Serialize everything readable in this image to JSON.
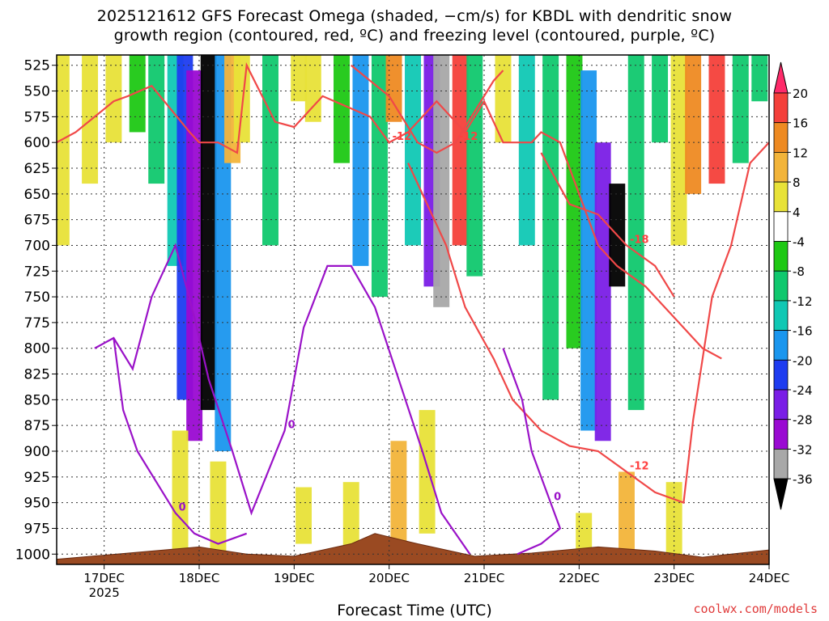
{
  "title_line1": "2025121612 GFS Forecast Omega (shaded, −cm/s) for KBDL with dendritic snow",
  "title_line2": "growth region (contoured, red, ºC) and freezing level (contoured, purple, ºC)",
  "x_axis_title": "Forecast Time (UTC)",
  "credit": "coolwx.com/models",
  "chart_data": {
    "type": "heatmap",
    "title": "2025121612 GFS Forecast Omega (shaded, −cm/s) for KBDL with dendritic snow growth region (contoured, red, ºC) and freezing level (contoured, purple, ºC)",
    "xlabel": "Forecast Time (UTC)",
    "ylabel": "",
    "x_ticks": [
      {
        "t": 1,
        "label": "17DEC",
        "sublabel": "2025"
      },
      {
        "t": 2,
        "label": "18DEC"
      },
      {
        "t": 3,
        "label": "19DEC"
      },
      {
        "t": 4,
        "label": "20DEC"
      },
      {
        "t": 5,
        "label": "21DEC"
      },
      {
        "t": 6,
        "label": "22DEC"
      },
      {
        "t": 7,
        "label": "23DEC"
      },
      {
        "t": 8,
        "label": "24DEC"
      }
    ],
    "xlim": [
      0.5,
      8.0
    ],
    "y_levels": [
      525,
      550,
      575,
      600,
      625,
      650,
      675,
      700,
      725,
      750,
      775,
      800,
      825,
      850,
      875,
      900,
      925,
      950,
      975,
      1000
    ],
    "ylim": [
      1010,
      515
    ],
    "grid": true,
    "colorbar": {
      "ticks": [
        20,
        16,
        12,
        8,
        4,
        -4,
        -8,
        -12,
        -16,
        -20,
        -24,
        -28,
        -32,
        -36
      ],
      "colors": [
        "#ff2a6a",
        "#f4403a",
        "#ee8a22",
        "#f2b43a",
        "#e8e238",
        "#ffffff",
        "#1ec814",
        "#10c86e",
        "#10c8b4",
        "#1a96ee",
        "#1e3cf0",
        "#7a1ee6",
        "#9a0ad2",
        "#a8a8a8",
        "#000000"
      ]
    },
    "omega_bands": [
      {
        "t": 0.55,
        "p1": 515,
        "p2": 700,
        "v": 6
      },
      {
        "t": 0.85,
        "p1": 515,
        "p2": 640,
        "v": 5
      },
      {
        "t": 1.1,
        "p1": 515,
        "p2": 600,
        "v": 5
      },
      {
        "t": 1.35,
        "p1": 515,
        "p2": 590,
        "v": -6
      },
      {
        "t": 1.55,
        "p1": 515,
        "p2": 640,
        "v": -10
      },
      {
        "t": 1.75,
        "p1": 515,
        "p2": 720,
        "v": -14
      },
      {
        "t": 1.85,
        "p1": 515,
        "p2": 850,
        "v": -22
      },
      {
        "t": 1.95,
        "p1": 530,
        "p2": 890,
        "v": -28
      },
      {
        "t": 2.1,
        "p1": 515,
        "p2": 860,
        "v": -40
      },
      {
        "t": 2.25,
        "p1": 515,
        "p2": 900,
        "v": -18
      },
      {
        "t": 2.35,
        "p1": 515,
        "p2": 620,
        "v": 12
      },
      {
        "t": 2.45,
        "p1": 515,
        "p2": 600,
        "v": 6
      },
      {
        "t": 2.75,
        "p1": 515,
        "p2": 700,
        "v": -9
      },
      {
        "t": 3.05,
        "p1": 515,
        "p2": 560,
        "v": 6
      },
      {
        "t": 3.2,
        "p1": 515,
        "p2": 580,
        "v": 4.5
      },
      {
        "t": 3.5,
        "p1": 515,
        "p2": 620,
        "v": -6
      },
      {
        "t": 3.7,
        "p1": 515,
        "p2": 720,
        "v": -18
      },
      {
        "t": 3.9,
        "p1": 515,
        "p2": 750,
        "v": -10
      },
      {
        "t": 4.05,
        "p1": 515,
        "p2": 580,
        "v": 16
      },
      {
        "t": 4.25,
        "p1": 515,
        "p2": 700,
        "v": -14
      },
      {
        "t": 4.45,
        "p1": 515,
        "p2": 740,
        "v": -24
      },
      {
        "t": 4.55,
        "p1": 515,
        "p2": 760,
        "v": -34
      },
      {
        "t": 4.75,
        "p1": 515,
        "p2": 700,
        "v": 20
      },
      {
        "t": 4.9,
        "p1": 515,
        "p2": 730,
        "v": -10
      },
      {
        "t": 5.2,
        "p1": 515,
        "p2": 600,
        "v": 6
      },
      {
        "t": 5.45,
        "p1": 515,
        "p2": 700,
        "v": -14
      },
      {
        "t": 5.7,
        "p1": 515,
        "p2": 850,
        "v": -10
      },
      {
        "t": 5.95,
        "p1": 515,
        "p2": 800,
        "v": -6
      },
      {
        "t": 6.1,
        "p1": 530,
        "p2": 880,
        "v": -16
      },
      {
        "t": 6.25,
        "p1": 600,
        "p2": 890,
        "v": -26
      },
      {
        "t": 6.4,
        "p1": 640,
        "p2": 740,
        "v": -40
      },
      {
        "t": 6.6,
        "p1": 515,
        "p2": 860,
        "v": -10
      },
      {
        "t": 6.85,
        "p1": 515,
        "p2": 600,
        "v": -8
      },
      {
        "t": 7.05,
        "p1": 515,
        "p2": 700,
        "v": 6
      },
      {
        "t": 7.2,
        "p1": 515,
        "p2": 650,
        "v": 14
      },
      {
        "t": 7.45,
        "p1": 515,
        "p2": 640,
        "v": 18
      },
      {
        "t": 7.7,
        "p1": 515,
        "p2": 620,
        "v": -8
      },
      {
        "t": 7.9,
        "p1": 515,
        "p2": 560,
        "v": -10
      },
      {
        "t": 1.8,
        "p1": 880,
        "p2": 1000,
        "v": 6
      },
      {
        "t": 2.2,
        "p1": 910,
        "p2": 1000,
        "v": 8
      },
      {
        "t": 3.1,
        "p1": 935,
        "p2": 990,
        "v": 5
      },
      {
        "t": 3.6,
        "p1": 930,
        "p2": 1000,
        "v": 6
      },
      {
        "t": 4.1,
        "p1": 890,
        "p2": 990,
        "v": 12
      },
      {
        "t": 4.4,
        "p1": 860,
        "p2": 980,
        "v": 8
      },
      {
        "t": 6.05,
        "p1": 960,
        "p2": 1000,
        "v": 5
      },
      {
        "t": 6.5,
        "p1": 920,
        "p2": 1000,
        "v": 10
      },
      {
        "t": 7.0,
        "p1": 930,
        "p2": 1000,
        "v": 6
      }
    ],
    "dgz_contours": [
      {
        "label": "-12",
        "points": [
          [
            0.5,
            600
          ],
          [
            0.7,
            590
          ],
          [
            0.9,
            575
          ],
          [
            1.1,
            560
          ],
          [
            1.25,
            555
          ],
          [
            1.5,
            545
          ],
          [
            1.9,
            590
          ],
          [
            2.0,
            600
          ],
          [
            2.2,
            600
          ],
          [
            2.4,
            610
          ],
          [
            2.5,
            525
          ],
          [
            2.8,
            580
          ],
          [
            3.0,
            585
          ],
          [
            3.3,
            555
          ],
          [
            3.8,
            575
          ],
          [
            4.0,
            600
          ],
          [
            4.2,
            590
          ],
          [
            4.5,
            560
          ],
          [
            4.8,
            590
          ],
          [
            5.0,
            560
          ],
          [
            5.2,
            600
          ],
          [
            5.5,
            600
          ],
          [
            5.6,
            590
          ],
          [
            5.8,
            600
          ],
          [
            6.0,
            650
          ],
          [
            6.2,
            700
          ],
          [
            6.4,
            720
          ],
          [
            6.7,
            740
          ],
          [
            7.0,
            770
          ],
          [
            7.3,
            800
          ],
          [
            7.5,
            810
          ]
        ]
      },
      {
        "label": "-12",
        "points": [
          [
            3.6,
            525
          ],
          [
            4.0,
            555
          ],
          [
            4.3,
            600
          ],
          [
            4.5,
            610
          ],
          [
            4.7,
            600
          ],
          [
            4.9,
            570
          ],
          [
            5.1,
            540
          ],
          [
            5.2,
            530
          ]
        ]
      },
      {
        "label": "-18",
        "points": [
          [
            5.6,
            610
          ],
          [
            5.9,
            660
          ],
          [
            6.2,
            670
          ],
          [
            6.5,
            700
          ],
          [
            6.8,
            720
          ],
          [
            7.0,
            750
          ]
        ]
      },
      {
        "label": "-12",
        "points": [
          [
            4.2,
            620
          ],
          [
            4.6,
            700
          ],
          [
            4.8,
            760
          ],
          [
            5.1,
            810
          ],
          [
            5.3,
            850
          ],
          [
            5.6,
            880
          ],
          [
            5.9,
            895
          ],
          [
            6.2,
            900
          ],
          [
            6.5,
            920
          ],
          [
            6.8,
            940
          ],
          [
            7.1,
            950
          ],
          [
            7.2,
            870
          ],
          [
            7.4,
            750
          ],
          [
            7.6,
            700
          ],
          [
            7.8,
            620
          ],
          [
            8.0,
            600
          ]
        ]
      }
    ],
    "freezing_contours": [
      {
        "label": "0",
        "points": [
          [
            0.9,
            800
          ],
          [
            1.1,
            790
          ],
          [
            1.3,
            820
          ],
          [
            1.5,
            750
          ],
          [
            1.75,
            700
          ],
          [
            1.95,
            770
          ],
          [
            2.1,
            830
          ],
          [
            2.35,
            900
          ],
          [
            2.55,
            960
          ],
          [
            2.9,
            880
          ],
          [
            3.1,
            780
          ],
          [
            3.35,
            720
          ],
          [
            3.6,
            720
          ],
          [
            3.85,
            760
          ],
          [
            4.1,
            830
          ],
          [
            4.35,
            900
          ],
          [
            4.55,
            960
          ],
          [
            4.85,
            1000
          ]
        ]
      },
      {
        "label": "0",
        "points": [
          [
            1.1,
            790
          ],
          [
            1.2,
            860
          ],
          [
            1.35,
            900
          ],
          [
            1.55,
            930
          ],
          [
            1.75,
            960
          ],
          [
            1.95,
            980
          ],
          [
            2.2,
            990
          ],
          [
            2.5,
            980
          ]
        ]
      },
      {
        "label": "0",
        "points": [
          [
            5.2,
            800
          ],
          [
            5.4,
            850
          ],
          [
            5.5,
            900
          ],
          [
            5.7,
            950
          ],
          [
            5.8,
            975
          ],
          [
            5.6,
            990
          ],
          [
            5.35,
            1000
          ]
        ]
      }
    ]
  }
}
